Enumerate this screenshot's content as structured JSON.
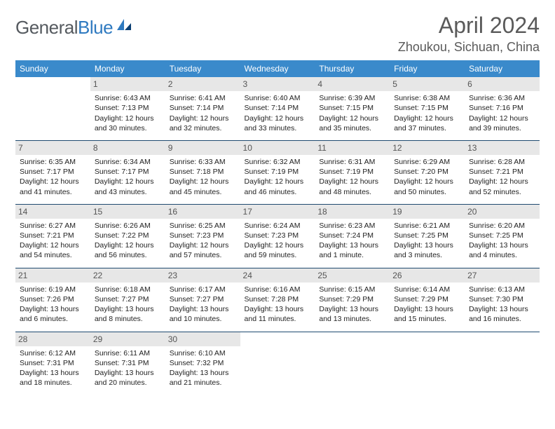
{
  "brand": {
    "part1": "General",
    "part2": "Blue"
  },
  "title": "April 2024",
  "location": "Zhoukou, Sichuan, China",
  "colors": {
    "header_bg": "#3a8acb",
    "header_fg": "#ffffff",
    "daybg": "#e7e7e7",
    "rule": "#1f4a70",
    "logo_gray": "#555a5f",
    "logo_blue": "#2f7ac0"
  },
  "weekdays": [
    "Sunday",
    "Monday",
    "Tuesday",
    "Wednesday",
    "Thursday",
    "Friday",
    "Saturday"
  ],
  "weeks": [
    [
      {
        "n": "",
        "sr": "",
        "ss": "",
        "dl1": "",
        "dl2": ""
      },
      {
        "n": "1",
        "sr": "Sunrise: 6:43 AM",
        "ss": "Sunset: 7:13 PM",
        "dl1": "Daylight: 12 hours",
        "dl2": "and 30 minutes."
      },
      {
        "n": "2",
        "sr": "Sunrise: 6:41 AM",
        "ss": "Sunset: 7:14 PM",
        "dl1": "Daylight: 12 hours",
        "dl2": "and 32 minutes."
      },
      {
        "n": "3",
        "sr": "Sunrise: 6:40 AM",
        "ss": "Sunset: 7:14 PM",
        "dl1": "Daylight: 12 hours",
        "dl2": "and 33 minutes."
      },
      {
        "n": "4",
        "sr": "Sunrise: 6:39 AM",
        "ss": "Sunset: 7:15 PM",
        "dl1": "Daylight: 12 hours",
        "dl2": "and 35 minutes."
      },
      {
        "n": "5",
        "sr": "Sunrise: 6:38 AM",
        "ss": "Sunset: 7:15 PM",
        "dl1": "Daylight: 12 hours",
        "dl2": "and 37 minutes."
      },
      {
        "n": "6",
        "sr": "Sunrise: 6:36 AM",
        "ss": "Sunset: 7:16 PM",
        "dl1": "Daylight: 12 hours",
        "dl2": "and 39 minutes."
      }
    ],
    [
      {
        "n": "7",
        "sr": "Sunrise: 6:35 AM",
        "ss": "Sunset: 7:17 PM",
        "dl1": "Daylight: 12 hours",
        "dl2": "and 41 minutes."
      },
      {
        "n": "8",
        "sr": "Sunrise: 6:34 AM",
        "ss": "Sunset: 7:17 PM",
        "dl1": "Daylight: 12 hours",
        "dl2": "and 43 minutes."
      },
      {
        "n": "9",
        "sr": "Sunrise: 6:33 AM",
        "ss": "Sunset: 7:18 PM",
        "dl1": "Daylight: 12 hours",
        "dl2": "and 45 minutes."
      },
      {
        "n": "10",
        "sr": "Sunrise: 6:32 AM",
        "ss": "Sunset: 7:19 PM",
        "dl1": "Daylight: 12 hours",
        "dl2": "and 46 minutes."
      },
      {
        "n": "11",
        "sr": "Sunrise: 6:31 AM",
        "ss": "Sunset: 7:19 PM",
        "dl1": "Daylight: 12 hours",
        "dl2": "and 48 minutes."
      },
      {
        "n": "12",
        "sr": "Sunrise: 6:29 AM",
        "ss": "Sunset: 7:20 PM",
        "dl1": "Daylight: 12 hours",
        "dl2": "and 50 minutes."
      },
      {
        "n": "13",
        "sr": "Sunrise: 6:28 AM",
        "ss": "Sunset: 7:21 PM",
        "dl1": "Daylight: 12 hours",
        "dl2": "and 52 minutes."
      }
    ],
    [
      {
        "n": "14",
        "sr": "Sunrise: 6:27 AM",
        "ss": "Sunset: 7:21 PM",
        "dl1": "Daylight: 12 hours",
        "dl2": "and 54 minutes."
      },
      {
        "n": "15",
        "sr": "Sunrise: 6:26 AM",
        "ss": "Sunset: 7:22 PM",
        "dl1": "Daylight: 12 hours",
        "dl2": "and 56 minutes."
      },
      {
        "n": "16",
        "sr": "Sunrise: 6:25 AM",
        "ss": "Sunset: 7:23 PM",
        "dl1": "Daylight: 12 hours",
        "dl2": "and 57 minutes."
      },
      {
        "n": "17",
        "sr": "Sunrise: 6:24 AM",
        "ss": "Sunset: 7:23 PM",
        "dl1": "Daylight: 12 hours",
        "dl2": "and 59 minutes."
      },
      {
        "n": "18",
        "sr": "Sunrise: 6:23 AM",
        "ss": "Sunset: 7:24 PM",
        "dl1": "Daylight: 13 hours",
        "dl2": "and 1 minute."
      },
      {
        "n": "19",
        "sr": "Sunrise: 6:21 AM",
        "ss": "Sunset: 7:25 PM",
        "dl1": "Daylight: 13 hours",
        "dl2": "and 3 minutes."
      },
      {
        "n": "20",
        "sr": "Sunrise: 6:20 AM",
        "ss": "Sunset: 7:25 PM",
        "dl1": "Daylight: 13 hours",
        "dl2": "and 4 minutes."
      }
    ],
    [
      {
        "n": "21",
        "sr": "Sunrise: 6:19 AM",
        "ss": "Sunset: 7:26 PM",
        "dl1": "Daylight: 13 hours",
        "dl2": "and 6 minutes."
      },
      {
        "n": "22",
        "sr": "Sunrise: 6:18 AM",
        "ss": "Sunset: 7:27 PM",
        "dl1": "Daylight: 13 hours",
        "dl2": "and 8 minutes."
      },
      {
        "n": "23",
        "sr": "Sunrise: 6:17 AM",
        "ss": "Sunset: 7:27 PM",
        "dl1": "Daylight: 13 hours",
        "dl2": "and 10 minutes."
      },
      {
        "n": "24",
        "sr": "Sunrise: 6:16 AM",
        "ss": "Sunset: 7:28 PM",
        "dl1": "Daylight: 13 hours",
        "dl2": "and 11 minutes."
      },
      {
        "n": "25",
        "sr": "Sunrise: 6:15 AM",
        "ss": "Sunset: 7:29 PM",
        "dl1": "Daylight: 13 hours",
        "dl2": "and 13 minutes."
      },
      {
        "n": "26",
        "sr": "Sunrise: 6:14 AM",
        "ss": "Sunset: 7:29 PM",
        "dl1": "Daylight: 13 hours",
        "dl2": "and 15 minutes."
      },
      {
        "n": "27",
        "sr": "Sunrise: 6:13 AM",
        "ss": "Sunset: 7:30 PM",
        "dl1": "Daylight: 13 hours",
        "dl2": "and 16 minutes."
      }
    ],
    [
      {
        "n": "28",
        "sr": "Sunrise: 6:12 AM",
        "ss": "Sunset: 7:31 PM",
        "dl1": "Daylight: 13 hours",
        "dl2": "and 18 minutes."
      },
      {
        "n": "29",
        "sr": "Sunrise: 6:11 AM",
        "ss": "Sunset: 7:31 PM",
        "dl1": "Daylight: 13 hours",
        "dl2": "and 20 minutes."
      },
      {
        "n": "30",
        "sr": "Sunrise: 6:10 AM",
        "ss": "Sunset: 7:32 PM",
        "dl1": "Daylight: 13 hours",
        "dl2": "and 21 minutes."
      },
      {
        "n": "",
        "sr": "",
        "ss": "",
        "dl1": "",
        "dl2": ""
      },
      {
        "n": "",
        "sr": "",
        "ss": "",
        "dl1": "",
        "dl2": ""
      },
      {
        "n": "",
        "sr": "",
        "ss": "",
        "dl1": "",
        "dl2": ""
      },
      {
        "n": "",
        "sr": "",
        "ss": "",
        "dl1": "",
        "dl2": ""
      }
    ]
  ]
}
